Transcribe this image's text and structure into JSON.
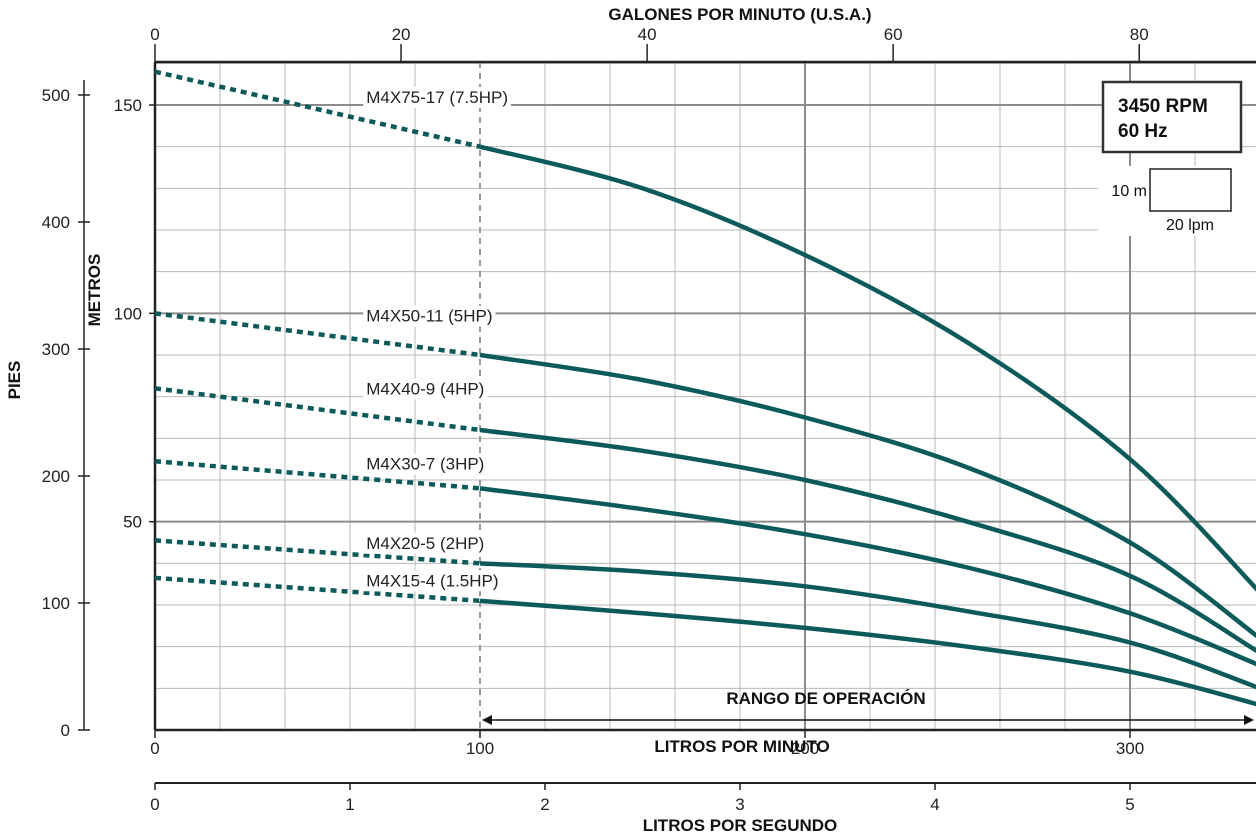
{
  "chart_data": {
    "type": "line",
    "title": "",
    "x_axes": {
      "primary": {
        "label": "LITROS POR MINUTO",
        "range": [
          0,
          340
        ],
        "ticks": [
          0,
          100,
          200,
          300
        ],
        "tick_labels": [
          "0",
          "100",
          "200",
          "300"
        ]
      },
      "top": {
        "label": "GALONES POR MINUTO (U.S.A.)",
        "ticks": [
          0,
          20,
          40,
          60,
          80
        ],
        "tick_labels": [
          "0",
          "20",
          "40",
          "60",
          "80"
        ]
      },
      "bottom": {
        "label": "LITROS POR SEGUNDO",
        "ticks": [
          0,
          1,
          2,
          3,
          4,
          5
        ],
        "tick_labels": [
          "0",
          "1",
          "2",
          "3",
          "4",
          "5"
        ]
      }
    },
    "y_axes": {
      "primary": {
        "label": "METROS",
        "range": [
          0,
          160
        ],
        "ticks": [
          50,
          100,
          150
        ],
        "tick_labels": [
          "50",
          "100",
          "150"
        ]
      },
      "secondary": {
        "label": "PIES",
        "ticks": [
          0,
          100,
          200,
          300,
          400,
          500
        ],
        "tick_labels": [
          "0",
          "100",
          "200",
          "300",
          "400",
          "500"
        ]
      }
    },
    "grid": true,
    "operating_range": {
      "label": "RANGO DE OPERACIÓN",
      "from_lpm": 100,
      "to_lpm": 340
    },
    "rpm_box": {
      "line1": "3450 RPM",
      "line2": "60 Hz"
    },
    "scale_box": {
      "vertical": "10 m",
      "horizontal": "20 lpm"
    },
    "series": [
      {
        "name": "M4X75-17 (7.5HP)",
        "label_x": 65,
        "label_y": 150.5,
        "x": [
          0,
          100,
          150,
          200,
          250,
          300,
          340
        ],
        "y": [
          158,
          140,
          130,
          114,
          93,
          65,
          33
        ]
      },
      {
        "name": "M4X50-11 (5HP)",
        "label_x": 65,
        "label_y": 98,
        "x": [
          0,
          100,
          150,
          200,
          250,
          300,
          340
        ],
        "y": [
          100,
          90,
          84,
          75,
          63,
          45,
          22
        ]
      },
      {
        "name": "M4X40-9 (4HP)",
        "label_x": 65,
        "label_y": 80.5,
        "x": [
          0,
          100,
          150,
          200,
          250,
          300,
          340
        ],
        "y": [
          82,
          72,
          67,
          60,
          50,
          37,
          18.5
        ]
      },
      {
        "name": "M4X30-7 (3HP)",
        "label_x": 65,
        "label_y": 62.5,
        "x": [
          0,
          100,
          150,
          200,
          250,
          300,
          340
        ],
        "y": [
          64.5,
          58,
          53,
          47,
          39,
          28,
          15.5
        ]
      },
      {
        "name": "M4X20-5 (2HP)",
        "label_x": 65,
        "label_y": 43.5,
        "x": [
          0,
          100,
          150,
          200,
          250,
          300,
          340
        ],
        "y": [
          45.5,
          40,
          38,
          34.5,
          28.5,
          21,
          10
        ]
      },
      {
        "name": "M4X15-4 (1.5HP)",
        "label_x": 65,
        "label_y": 34.5,
        "x": [
          0,
          100,
          150,
          200,
          250,
          300,
          340
        ],
        "y": [
          36.5,
          31,
          28,
          24.5,
          20,
          14,
          6
        ]
      }
    ]
  }
}
